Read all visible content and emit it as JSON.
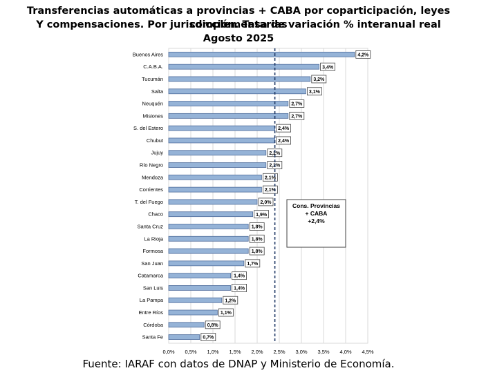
{
  "title": {
    "line1": "Transferencias automáticas a provincias + CABA por coparticipación, leyes complementarias",
    "line2": "Y compensaciones. Por jurisdicción. Tasa de variación % interanual real",
    "line3": "Agosto 2025"
  },
  "source": "Fuente: IARAF con datos de DNAP y Ministerio de Economía.",
  "colors": {
    "bar_fill": "#95b3d7",
    "bar_stroke": "#4f6c9b",
    "grid": "#d9d9d9",
    "reference_line": "#1f3864"
  },
  "chart_data": {
    "type": "bar",
    "orientation": "horizontal",
    "categories": [
      "Buenos Aires",
      "C.A.B.A.",
      "Tucumán",
      "Salta",
      "Neuquén",
      "Misiones",
      "S. del Estero",
      "Chubut",
      "Jujuy",
      "Río Negro",
      "Mendoza",
      "Corrientes",
      "T. del Fuego",
      "Chaco",
      "Santa Cruz",
      "La Rioja",
      "Formosa",
      "San Juan",
      "Catamarca",
      "San Luis",
      "La Pampa",
      "Entre Ríos",
      "Córdoba",
      "Santa Fe"
    ],
    "values": [
      4.2,
      3.4,
      3.2,
      3.1,
      2.7,
      2.7,
      2.4,
      2.4,
      2.2,
      2.2,
      2.1,
      2.1,
      2.0,
      1.9,
      1.8,
      1.8,
      1.8,
      1.7,
      1.4,
      1.4,
      1.2,
      1.1,
      0.8,
      0.7
    ],
    "data_labels": [
      "4,2%",
      "3,4%",
      "3,2%",
      "3,1%",
      "2,7%",
      "2,7%",
      "2,4%",
      "2,4%",
      "2,2%",
      "2,2%",
      "2,1%",
      "2,1%",
      "2,0%",
      "1,9%",
      "1,8%",
      "1,8%",
      "1,8%",
      "1,7%",
      "1,4%",
      "1,4%",
      "1,2%",
      "1,1%",
      "0,8%",
      "0,7%"
    ],
    "xlim": [
      0,
      4.5
    ],
    "xticks": [
      0,
      0.5,
      1,
      1.5,
      2,
      2.5,
      3,
      3.5,
      4,
      4.5
    ],
    "xtick_labels": [
      "0,0%",
      "0,5%",
      "1,0%",
      "1,5%",
      "2,0%",
      "2,5%",
      "3,0%",
      "3,5%",
      "4,0%",
      "4,5%"
    ],
    "grid": true,
    "reference_line": {
      "value": 2.4,
      "style": "dashed"
    },
    "annotation": {
      "lines": [
        "Cons. Provincias",
        "+ CABA",
        "+2,4%"
      ]
    }
  }
}
